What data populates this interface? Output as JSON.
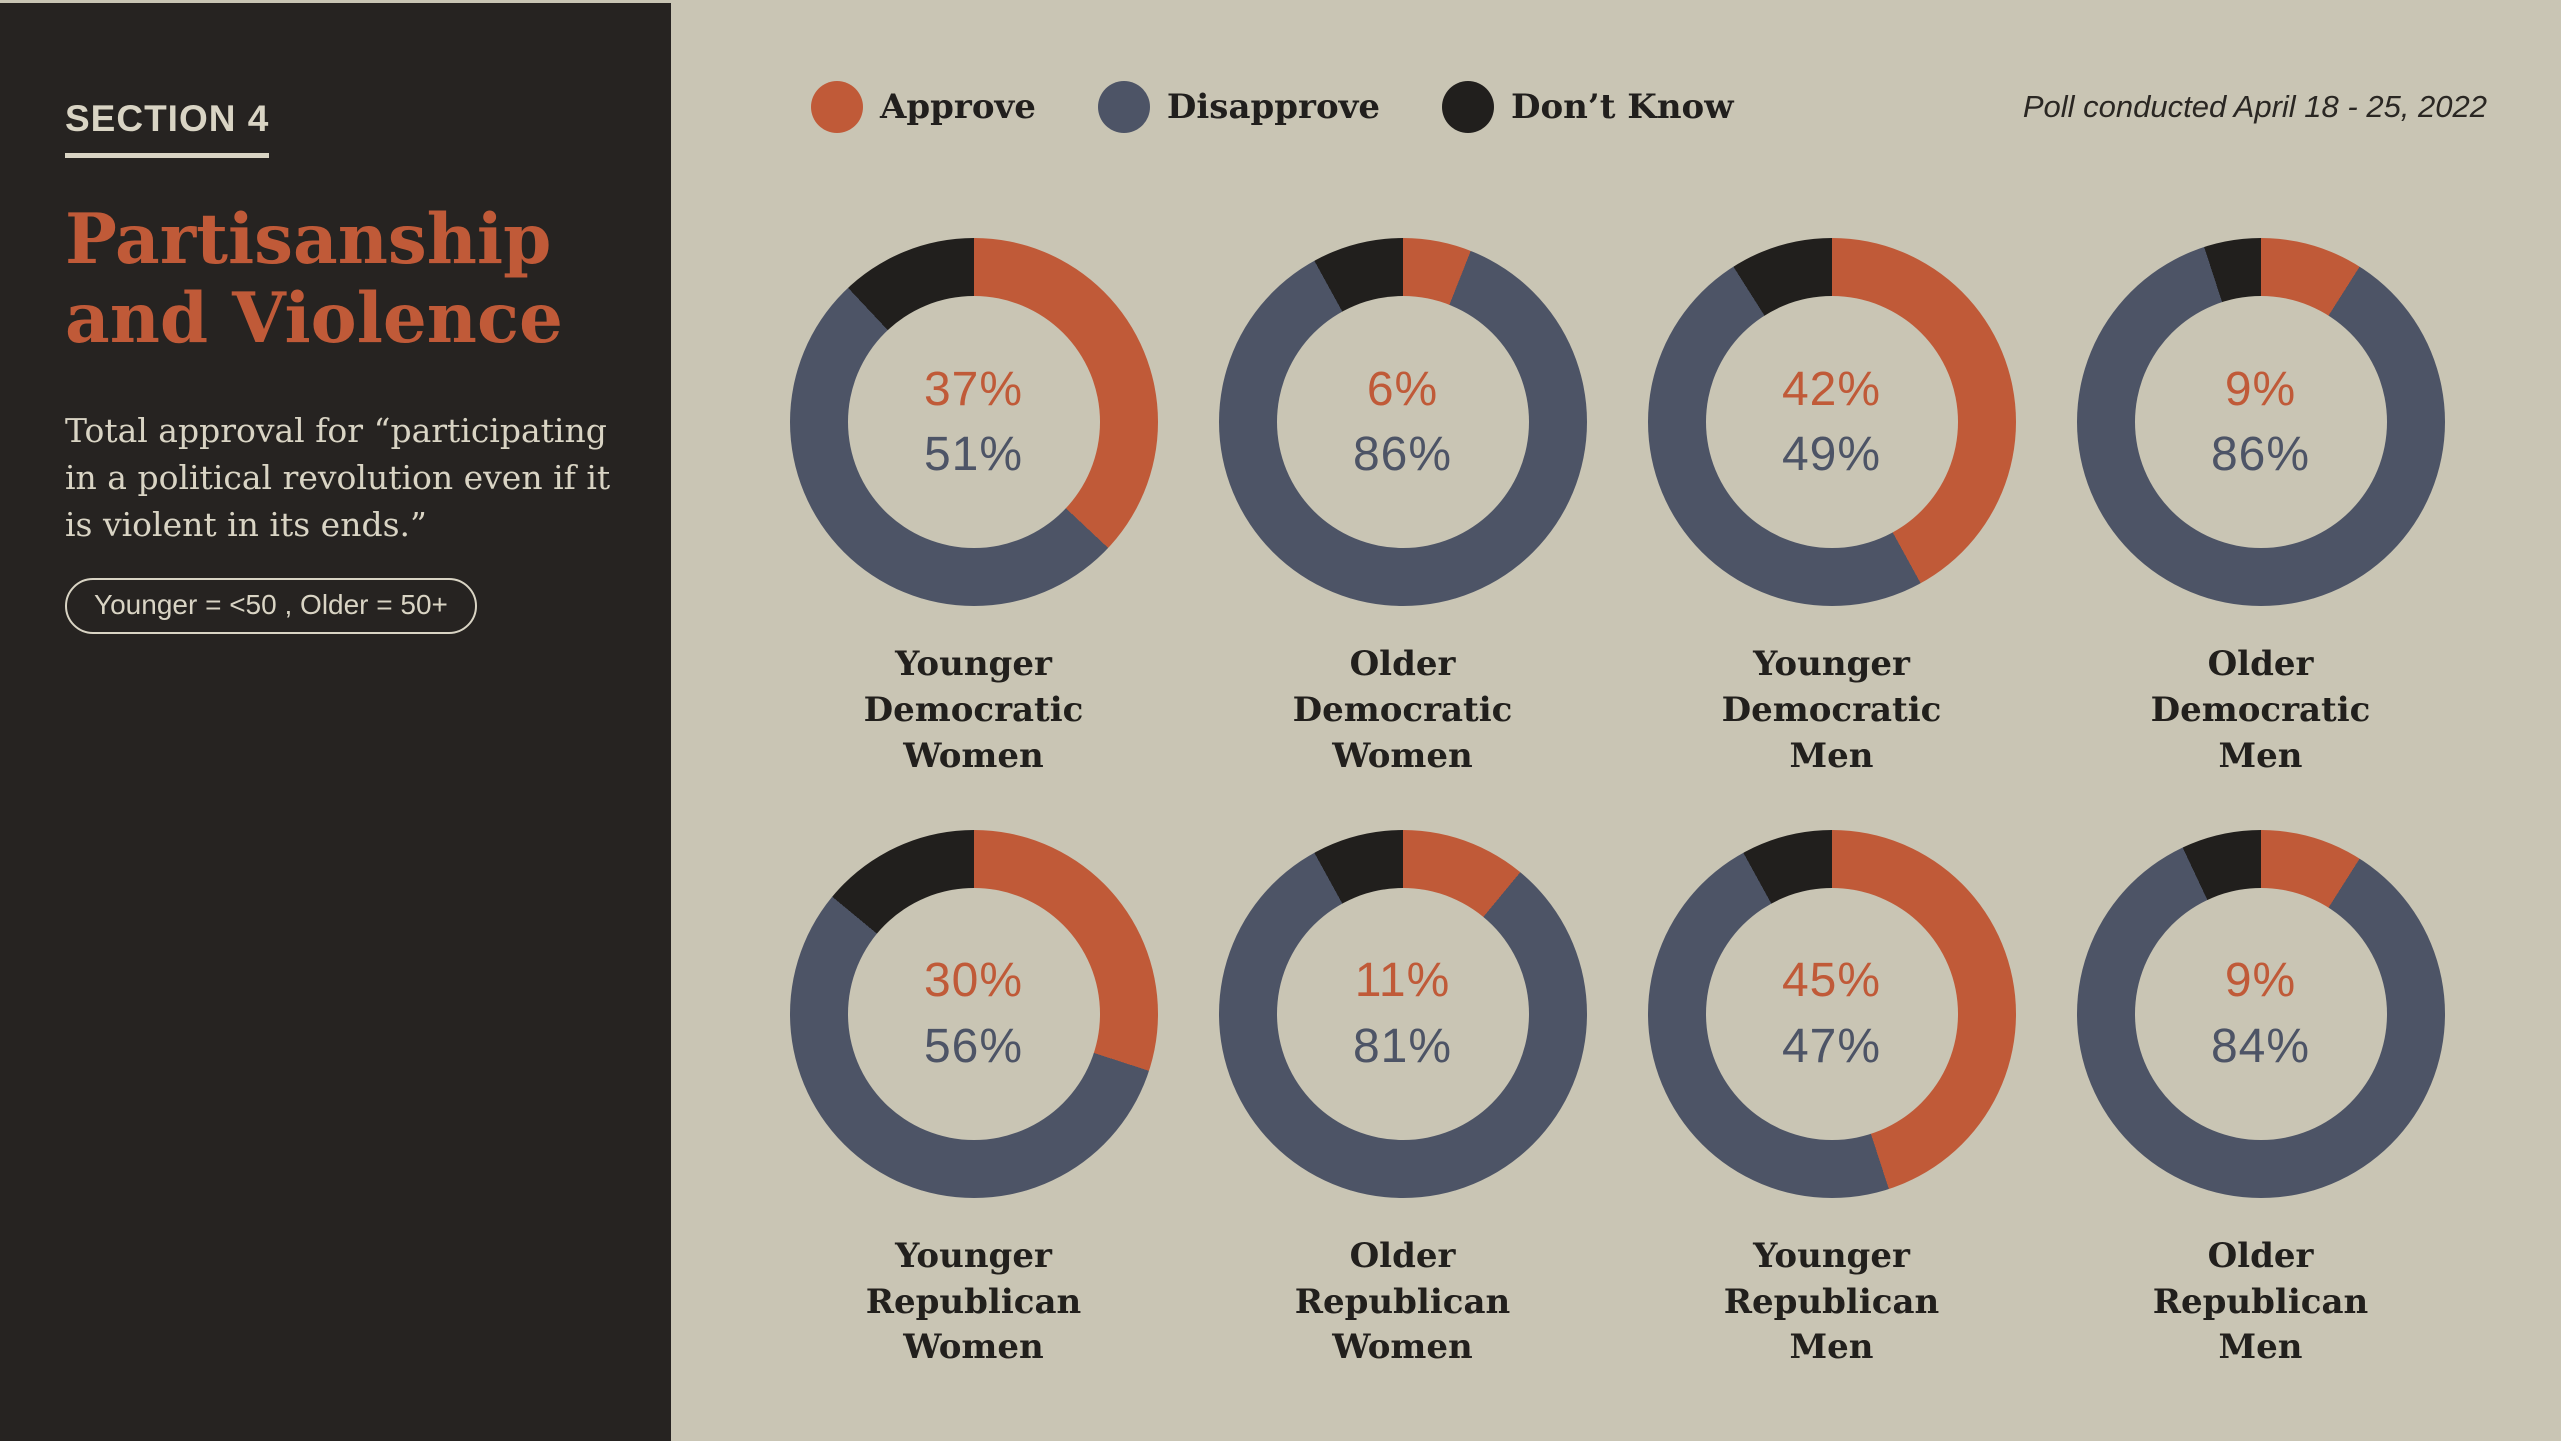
{
  "colors": {
    "background": "#c9c5b4",
    "panel": "#262321",
    "approve": "#c05a38",
    "disapprove": "#4d5466",
    "dont_know": "#211f1d",
    "light_text": "#d9d4c4",
    "dark_text": "#22201d"
  },
  "sidebar": {
    "section_label": "SECTION 4",
    "title": "Partisanship\nand Violence",
    "description": "Total approval for “participating\nin a political revolution even if it\nis violent in its ends.”",
    "age_note": "Younger = <50 , Older = 50+"
  },
  "header": {
    "legend": [
      {
        "key": "approve",
        "label": "Approve"
      },
      {
        "key": "disapprove",
        "label": "Disapprove"
      },
      {
        "key": "dont_know",
        "label": "Don’t Know"
      }
    ],
    "poll_note": "Poll conducted April 18 - 25, 2022"
  },
  "chart_data": [
    {
      "type": "pie",
      "subtype": "donut",
      "title": "Younger Democratic Women",
      "label": "Younger\nDemocratic\nWomen",
      "approve_label": "37%",
      "disapprove_label": "51%",
      "series": [
        {
          "name": "Approve",
          "value": 37
        },
        {
          "name": "Disapprove",
          "value": 51
        },
        {
          "name": "Don’t Know",
          "value": 12
        }
      ]
    },
    {
      "type": "pie",
      "subtype": "donut",
      "title": "Older Democratic Women",
      "label": "Older\nDemocratic\nWomen",
      "approve_label": "6%",
      "disapprove_label": "86%",
      "series": [
        {
          "name": "Approve",
          "value": 6
        },
        {
          "name": "Disapprove",
          "value": 86
        },
        {
          "name": "Don’t Know",
          "value": 8
        }
      ]
    },
    {
      "type": "pie",
      "subtype": "donut",
      "title": "Younger Democratic Men",
      "label": "Younger\nDemocratic\nMen",
      "approve_label": "42%",
      "disapprove_label": "49%",
      "series": [
        {
          "name": "Approve",
          "value": 42
        },
        {
          "name": "Disapprove",
          "value": 49
        },
        {
          "name": "Don’t Know",
          "value": 9
        }
      ]
    },
    {
      "type": "pie",
      "subtype": "donut",
      "title": "Older Democratic Men",
      "label": "Older\nDemocratic\nMen",
      "approve_label": "9%",
      "disapprove_label": "86%",
      "series": [
        {
          "name": "Approve",
          "value": 9
        },
        {
          "name": "Disapprove",
          "value": 86
        },
        {
          "name": "Don’t Know",
          "value": 5
        }
      ]
    },
    {
      "type": "pie",
      "subtype": "donut",
      "title": "Younger Republican Women",
      "label": "Younger\nRepublican\nWomen",
      "approve_label": "30%",
      "disapprove_label": "56%",
      "series": [
        {
          "name": "Approve",
          "value": 30
        },
        {
          "name": "Disapprove",
          "value": 56
        },
        {
          "name": "Don’t Know",
          "value": 14
        }
      ]
    },
    {
      "type": "pie",
      "subtype": "donut",
      "title": "Older Republican Women",
      "label": "Older\nRepublican\nWomen",
      "approve_label": "11%",
      "disapprove_label": "81%",
      "series": [
        {
          "name": "Approve",
          "value": 11
        },
        {
          "name": "Disapprove",
          "value": 81
        },
        {
          "name": "Don’t Know",
          "value": 8
        }
      ]
    },
    {
      "type": "pie",
      "subtype": "donut",
      "title": "Younger Republican Men",
      "label": "Younger\nRepublican\nMen",
      "approve_label": "45%",
      "disapprove_label": "47%",
      "series": [
        {
          "name": "Approve",
          "value": 45
        },
        {
          "name": "Disapprove",
          "value": 47
        },
        {
          "name": "Don’t Know",
          "value": 8
        }
      ]
    },
    {
      "type": "pie",
      "subtype": "donut",
      "title": "Older Republican Men",
      "label": "Older\nRepublican\nMen",
      "approve_label": "9%",
      "disapprove_label": "84%",
      "series": [
        {
          "name": "Approve",
          "value": 9
        },
        {
          "name": "Disapprove",
          "value": 84
        },
        {
          "name": "Don’t Know",
          "value": 7
        }
      ]
    }
  ]
}
